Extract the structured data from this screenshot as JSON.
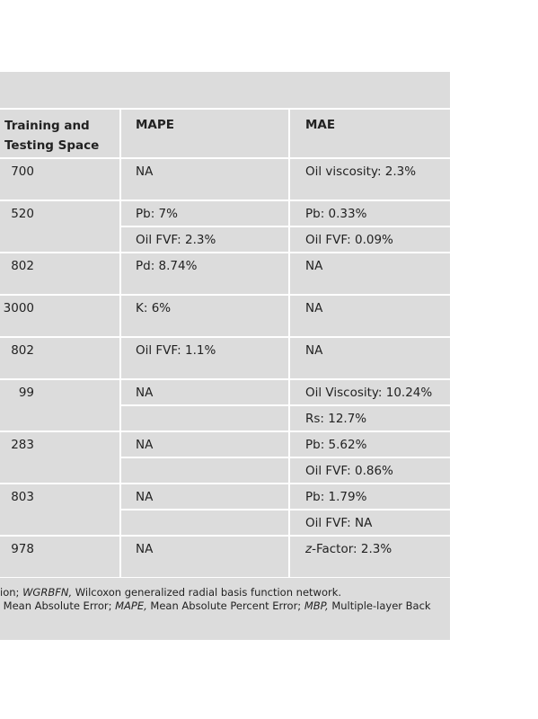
{
  "table": {
    "header": [
      "Training and Testing Space",
      "MAPE",
      "MAE"
    ],
    "rows": [
      {
        "space": "700",
        "mape": [
          "NA"
        ],
        "mae": [
          "Oil viscosity: 2.3%"
        ]
      },
      {
        "space": "520",
        "mape": [
          "Pb: 7%",
          "Oil FVF: 2.3%"
        ],
        "mae": [
          "Pb: 0.33%",
          "Oil FVF: 0.09%"
        ]
      },
      {
        "space": "802",
        "mape": [
          "Pd: 8.74%"
        ],
        "mae": [
          "NA"
        ]
      },
      {
        "space": "3000",
        "mape": [
          "K: 6%"
        ],
        "mae": [
          "NA"
        ]
      },
      {
        "space": "802",
        "mape": [
          "Oil FVF: 1.1%"
        ],
        "mae": [
          "NA"
        ]
      },
      {
        "space": "99",
        "mape": [
          "NA"
        ],
        "mae": [
          "Oil Viscosity: 10.24%",
          "Rs: 12.7%"
        ]
      },
      {
        "space": "283",
        "mape": [
          "NA"
        ],
        "mae": [
          "Pb: 5.62%",
          "Oil FVF: 0.86%"
        ]
      },
      {
        "space": "803",
        "mape": [
          "NA"
        ],
        "mae": [
          "Pb: 1.79%",
          "Oil FVF: NA"
        ]
      },
      {
        "space": "978",
        "mape": [
          "NA"
        ],
        "mae": [
          {
            "italic": "z",
            "text": "-Factor: 2.3%"
          }
        ]
      }
    ]
  },
  "footnote": {
    "line1": [
      "ion; ",
      "WGRBFN,",
      " Wilcoxon generalized radial basis function network."
    ],
    "line2": [
      " Mean Absolute Error; ",
      "MAPE,",
      " Mean Absolute Percent Error; ",
      "MBP,",
      " Multiple-layer Back"
    ]
  }
}
